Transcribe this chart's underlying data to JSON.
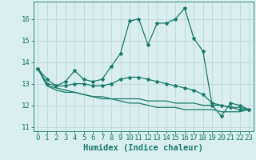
{
  "xlabel": "Humidex (Indice chaleur)",
  "x": [
    0,
    1,
    2,
    3,
    4,
    5,
    6,
    7,
    8,
    9,
    10,
    11,
    12,
    13,
    14,
    15,
    16,
    17,
    18,
    19,
    20,
    21,
    22,
    23
  ],
  "line1": [
    13.7,
    13.2,
    12.9,
    13.1,
    13.6,
    13.2,
    13.1,
    13.2,
    13.8,
    14.4,
    15.9,
    16.0,
    14.8,
    15.8,
    15.8,
    16.0,
    16.5,
    15.1,
    14.5,
    12.0,
    11.5,
    12.1,
    12.0,
    11.8
  ],
  "line2": [
    13.7,
    13.0,
    12.9,
    12.9,
    13.0,
    13.0,
    12.9,
    12.9,
    13.0,
    13.2,
    13.3,
    13.3,
    13.2,
    13.1,
    13.0,
    12.9,
    12.8,
    12.7,
    12.5,
    12.1,
    12.0,
    11.9,
    11.8,
    11.8
  ],
  "line3": [
    13.7,
    12.9,
    12.7,
    12.6,
    12.6,
    12.5,
    12.4,
    12.3,
    12.3,
    12.3,
    12.3,
    12.3,
    12.2,
    12.2,
    12.2,
    12.1,
    12.1,
    12.1,
    12.0,
    12.0,
    12.0,
    11.9,
    11.9,
    11.8
  ],
  "line4": [
    13.7,
    12.9,
    12.8,
    12.7,
    12.6,
    12.5,
    12.4,
    12.4,
    12.3,
    12.2,
    12.1,
    12.1,
    12.0,
    11.9,
    11.9,
    11.9,
    11.8,
    11.8,
    11.8,
    11.8,
    11.7,
    11.7,
    11.7,
    11.8
  ],
  "line_color": "#1a7a6a",
  "bg_color": "#d9eeee",
  "grid_color": "#c0d8d8",
  "ylim": [
    10.8,
    16.8
  ],
  "yticks": [
    11,
    12,
    13,
    14,
    15,
    16
  ],
  "xlim": [
    -0.5,
    23.5
  ],
  "tick_fontsize": 6.5,
  "label_fontsize": 7.5
}
